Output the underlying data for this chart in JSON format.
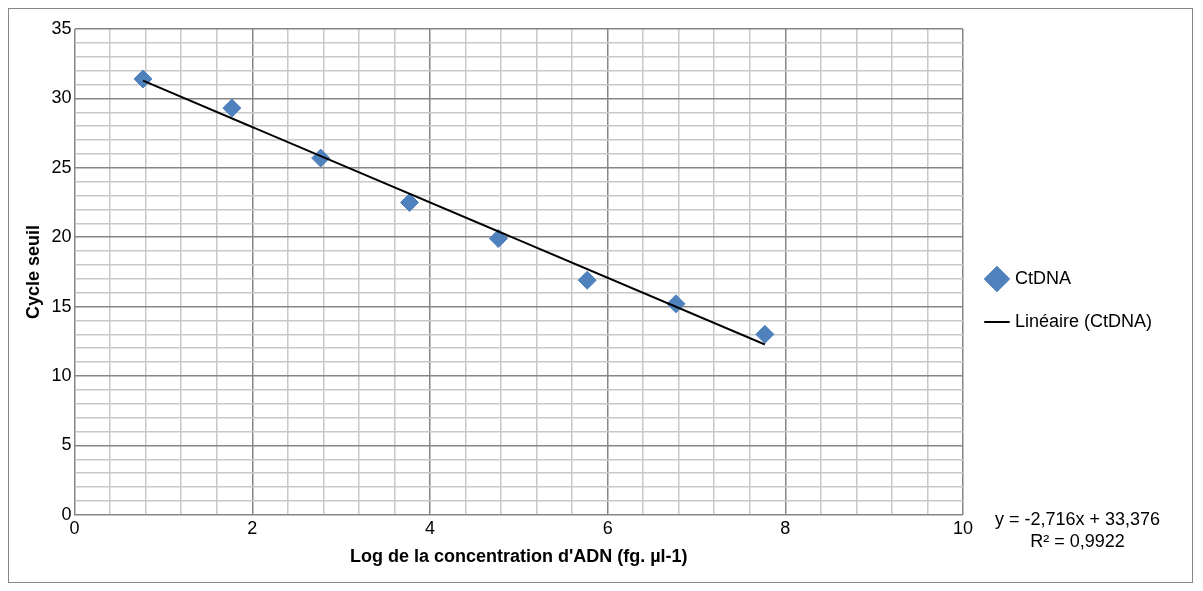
{
  "chart_data": {
    "type": "scatter",
    "xlabel": "Log de la concentration d'ADN (fg. µl-1)",
    "ylabel": "Cycle seuil",
    "series": [
      {
        "name": "CtDNA",
        "color": "#4f81bd",
        "x": [
          0.77,
          1.77,
          2.77,
          3.77,
          4.77,
          5.77,
          6.77,
          7.77
        ],
        "values": [
          31.4,
          29.3,
          25.7,
          22.5,
          19.9,
          16.9,
          15.2,
          13.0
        ],
        "marker": "diamond"
      },
      {
        "name": "Linéaire (CtDNA)",
        "type": "line",
        "color": "#000000",
        "x": [
          0.77,
          7.77
        ],
        "values": [
          31.28,
          12.27
        ],
        "marker": "none",
        "line_style": "solid"
      }
    ],
    "xlim": [
      0,
      10
    ],
    "xticks": [
      0,
      {
        "value": 0.4,
        "label": null
      },
      {
        "value": 0.8,
        "label": null
      },
      {
        "value": 1.2,
        "label": null
      },
      {
        "value": 1.6,
        "label": null
      },
      2,
      {
        "value": 2.4,
        "label": null
      },
      {
        "value": 2.8,
        "label": null
      },
      {
        "value": 3.2,
        "label": null
      },
      {
        "value": 3.6,
        "label": null
      },
      4,
      {
        "value": 4.4,
        "label": null
      },
      {
        "value": 4.8,
        "label": null
      },
      {
        "value": 5.2,
        "label": null
      },
      {
        "value": 5.6,
        "label": null
      },
      6,
      {
        "value": 6.4,
        "label": null
      },
      {
        "value": 6.8,
        "label": null
      },
      {
        "value": 7.2,
        "label": null
      },
      {
        "value": 7.6,
        "label": null
      },
      8,
      {
        "value": 8.4,
        "label": null
      },
      {
        "value": 8.8,
        "label": null
      },
      {
        "value": 9.2,
        "label": null
      },
      {
        "value": 9.6,
        "label": null
      },
      10
    ],
    "ylim": [
      0,
      35
    ],
    "yticks": [
      0,
      {
        "value": 1,
        "label": null
      },
      {
        "value": 2,
        "label": null
      },
      {
        "value": 3,
        "label": null
      },
      {
        "value": 4,
        "label": null
      },
      5,
      {
        "value": 6,
        "label": null
      },
      {
        "value": 7,
        "label": null
      },
      {
        "value": 8,
        "label": null
      },
      {
        "value": 9,
        "label": null
      },
      10,
      {
        "value": 11,
        "label": null
      },
      {
        "value": 12,
        "label": null
      },
      {
        "value": 13,
        "label": null
      },
      {
        "value": 14,
        "label": null
      },
      15,
      {
        "value": 16,
        "label": null
      },
      {
        "value": 17,
        "label": null
      },
      {
        "value": 18,
        "label": null
      },
      {
        "value": 19,
        "label": null
      },
      20,
      {
        "value": 21,
        "label": null
      },
      {
        "value": 22,
        "label": null
      },
      {
        "value": 23,
        "label": null
      },
      {
        "value": 24,
        "label": null
      },
      25,
      {
        "value": 26,
        "label": null
      },
      {
        "value": 27,
        "label": null
      },
      {
        "value": 28,
        "label": null
      },
      {
        "value": 29,
        "label": null
      },
      30,
      {
        "value": 31,
        "label": null
      },
      {
        "value": 32,
        "label": null
      },
      {
        "value": 33,
        "label": null
      },
      {
        "value": 34,
        "label": null
      },
      35
    ],
    "grid": true,
    "legend": "right",
    "annotations": [
      "y = -2,716x + 33,376",
      "R² = 0,9922"
    ]
  }
}
